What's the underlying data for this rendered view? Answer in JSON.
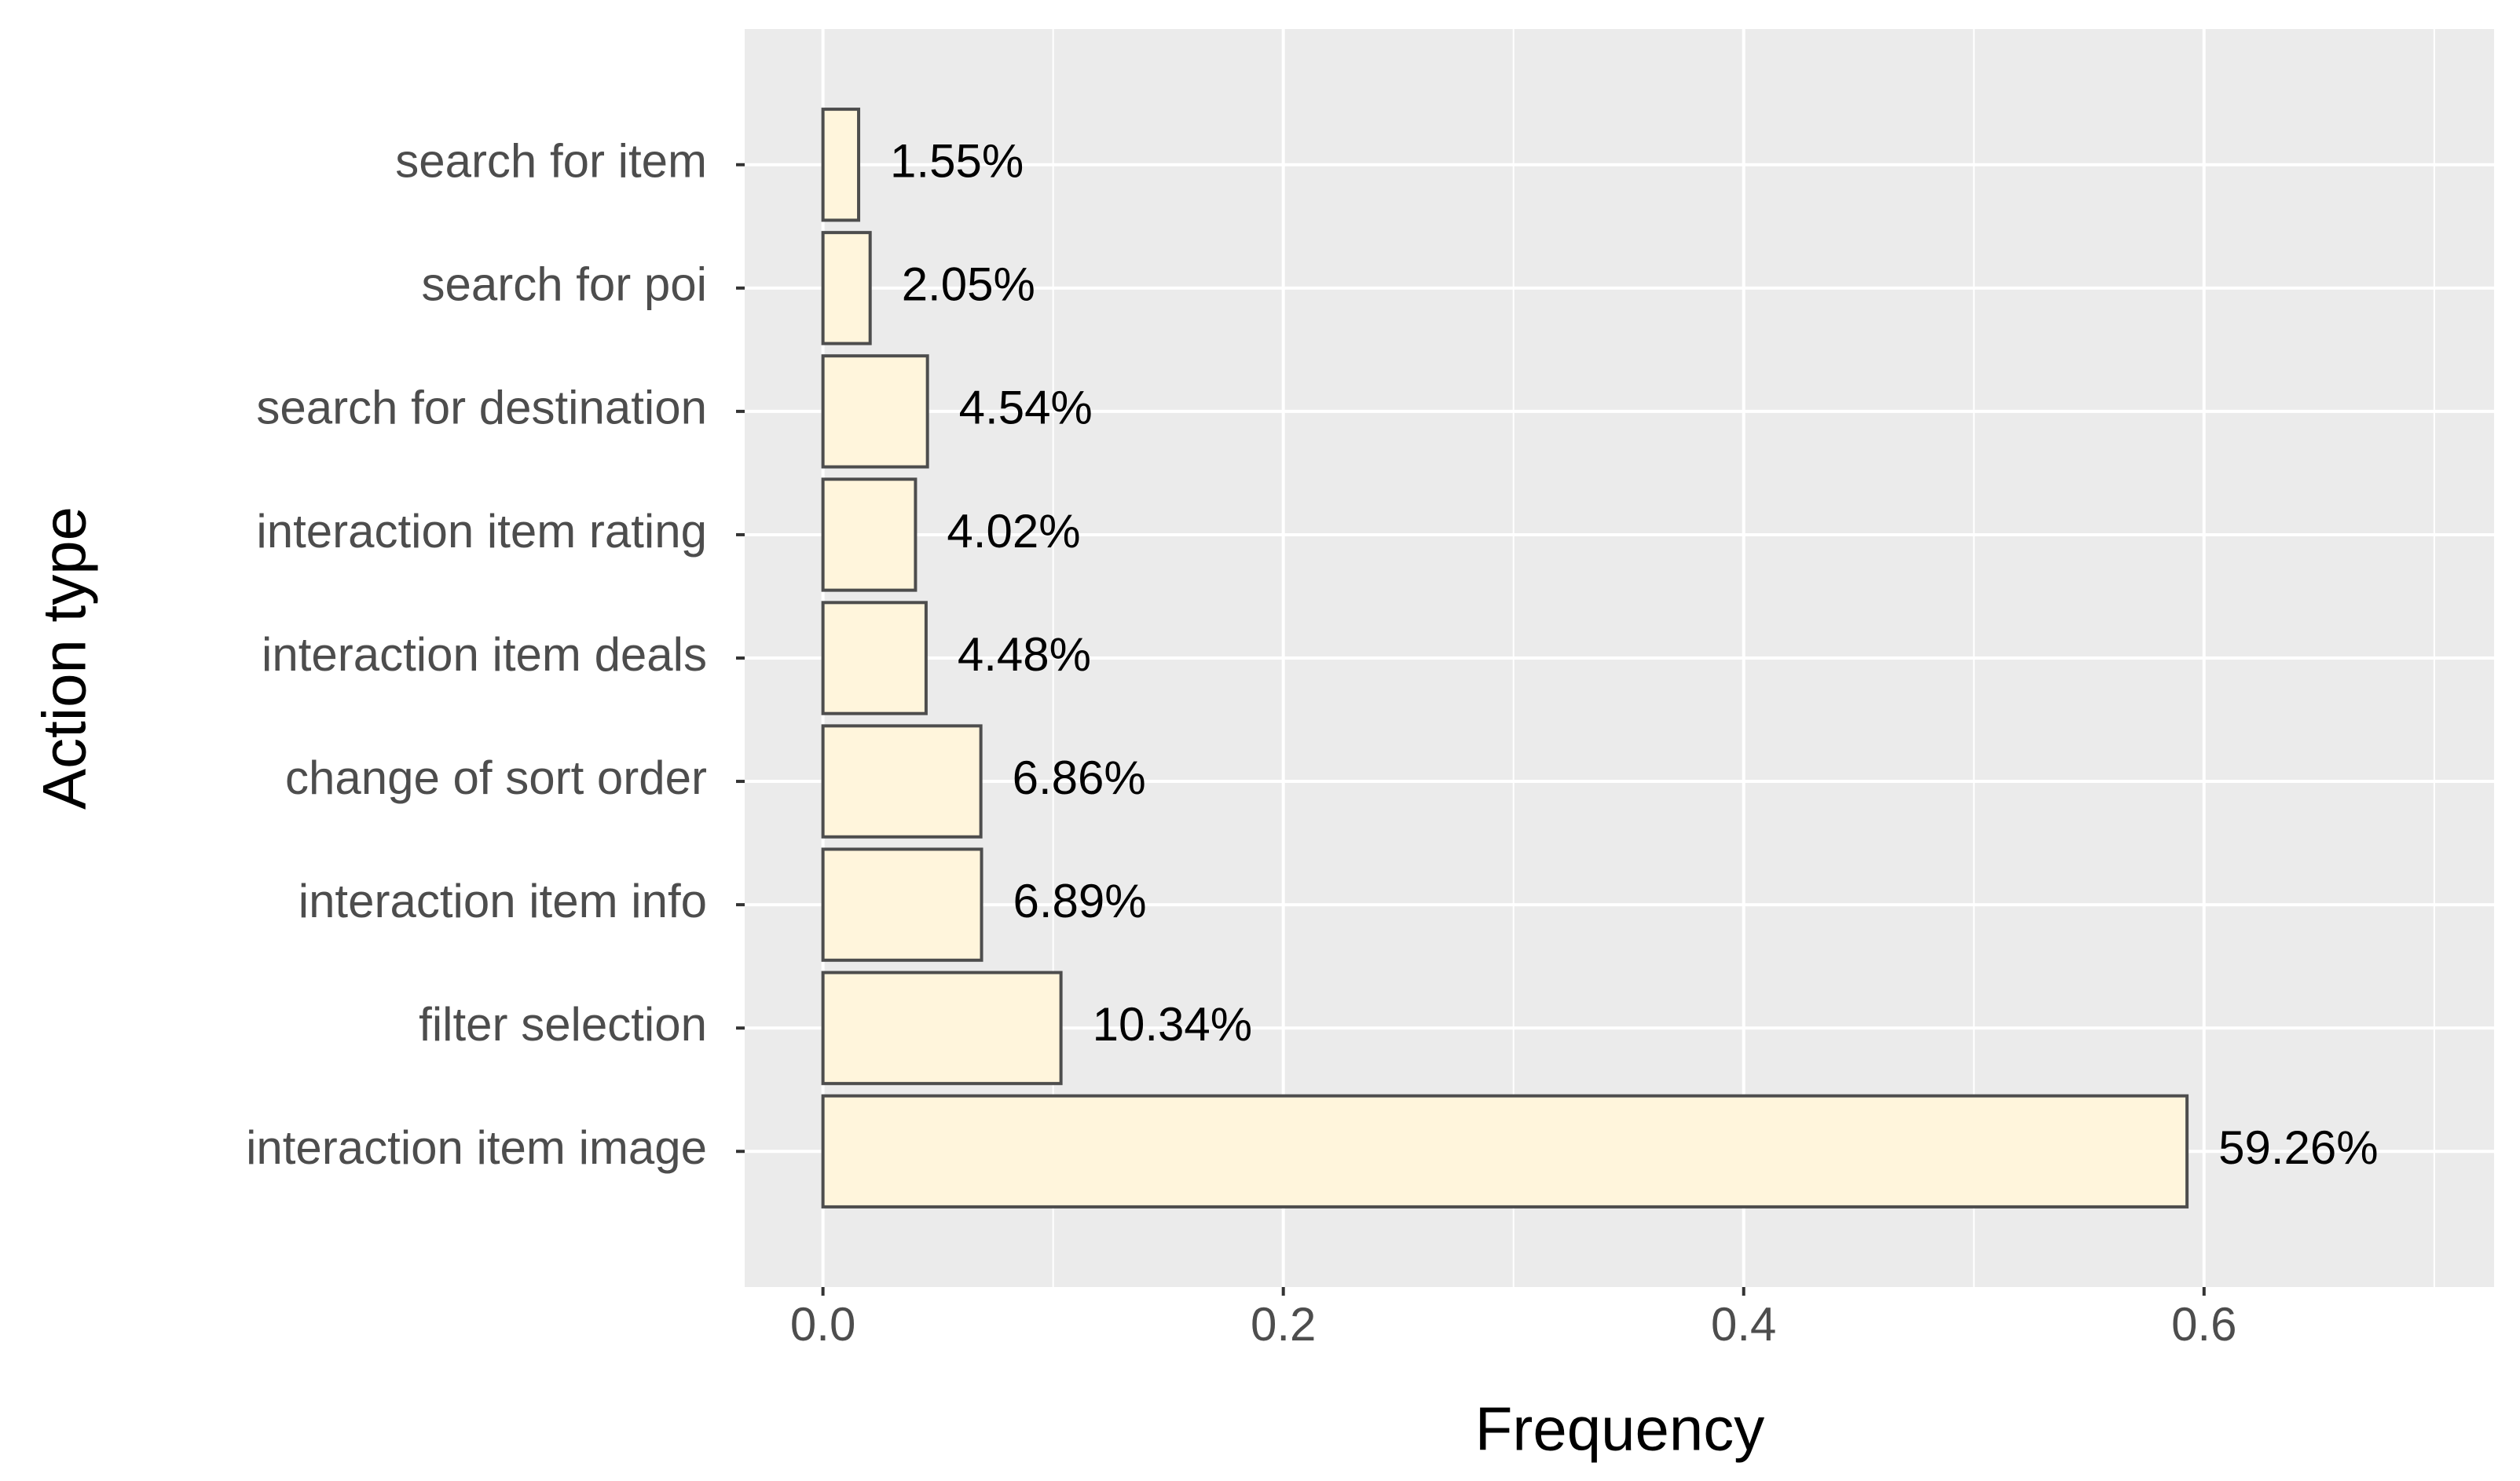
{
  "chart_data": {
    "type": "hbar",
    "categories": [
      "search for item",
      "search for poi",
      "search for destination",
      "interaction item rating",
      "interaction item deals",
      "change of sort order",
      "interaction item info",
      "filter selection",
      "interaction item image"
    ],
    "values": [
      0.0155,
      0.0205,
      0.0454,
      0.0402,
      0.0448,
      0.0686,
      0.0689,
      0.1034,
      0.5926
    ],
    "value_labels": [
      "1.55%",
      "2.05%",
      "4.54%",
      "4.02%",
      "4.48%",
      "6.86%",
      "6.89%",
      "10.34%",
      "59.26%"
    ],
    "x_label": "Frequency",
    "y_label": "Action type",
    "xlim": [
      -0.034,
      0.726
    ],
    "xticks": [
      {
        "value": 0,
        "label": "0.0"
      },
      0.2,
      0.4,
      0.6
    ],
    "minor_xticks": [
      0.1,
      0.3,
      0.5,
      0.7
    ],
    "grid": true,
    "color": "#fff5dc",
    "edge_color": "#4d4d4d"
  }
}
